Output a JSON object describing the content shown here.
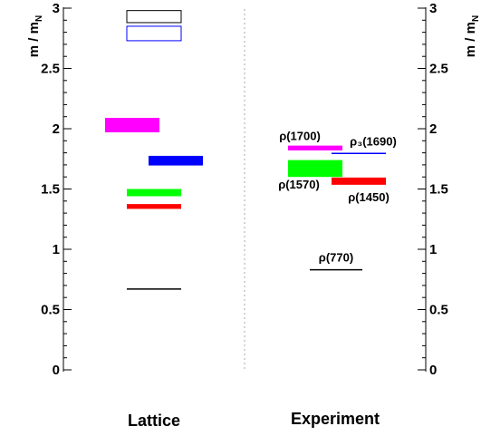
{
  "chart_data": {
    "type": "spectrum",
    "ylabel_main": "m / m",
    "ylabel_sub": "N",
    "ylim": [
      0,
      3
    ],
    "yticks": [
      "0",
      "0.5",
      "1",
      "1.5",
      "2",
      "2.5",
      "3"
    ],
    "columns": [
      "Lattice",
      "Experiment"
    ],
    "lattice_levels": [
      {
        "mass": 0.67,
        "error": 0.0,
        "color": "#000000"
      },
      {
        "mass": 1.355,
        "error": 0.02,
        "color": "#ff0000"
      },
      {
        "mass": 1.47,
        "error": 0.03,
        "color": "#00ff00"
      },
      {
        "mass": 1.735,
        "error": 0.04,
        "color": "#0000ff"
      },
      {
        "mass": 2.03,
        "error": 0.06,
        "color": "#ff00ff"
      },
      {
        "mass": 2.79,
        "error": 0.06,
        "color": "#0000ff",
        "open": true
      },
      {
        "mass": 2.93,
        "error": 0.05,
        "color": "#000000",
        "open": true
      }
    ],
    "experiment_levels": [
      {
        "name": "ρ(770)",
        "mass": 0.83,
        "error": 0.0,
        "color": "#000000"
      },
      {
        "name": "ρ(1450)",
        "mass": 1.565,
        "error": 0.03,
        "color": "#ff0000"
      },
      {
        "name": "ρ(1570)",
        "mass": 1.67,
        "error": 0.07,
        "color": "#00ff00"
      },
      {
        "name": "ρ₃(1690)",
        "mass": 1.795,
        "error": 0.0,
        "color": "#0000ff"
      },
      {
        "name": "ρ(1700)",
        "mass": 1.84,
        "error": 0.02,
        "color": "#ff00ff"
      }
    ]
  }
}
